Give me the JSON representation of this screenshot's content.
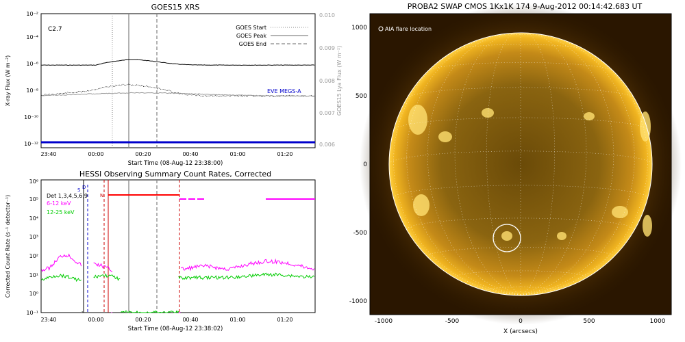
{
  "goes": {
    "title": "GOES15 XRS",
    "flare_class": "C2.7",
    "ylabel_left": "X-ray Flux (W m⁻²)",
    "ylabel_right": "GOES15 Lya Flux (W m⁻²)",
    "xlabel": "Start Time (08-Aug-12 23:38:00)",
    "x_ticks": [
      "23:40",
      "00:00",
      "00:20",
      "00:40",
      "01:00",
      "01:20"
    ],
    "y_ticks_left": [
      "10⁻¹²",
      "10⁻¹⁰",
      "10⁻⁸",
      "10⁻⁶",
      "10⁻⁴",
      "10⁻²"
    ],
    "y_ticks_right": [
      "0.006",
      "0.007",
      "0.008",
      "0.009",
      "0.010"
    ],
    "legend": [
      {
        "label": "GOES Start",
        "style": "dotted"
      },
      {
        "label": "GOES Peak",
        "style": "solid"
      },
      {
        "label": "GOES End",
        "style": "dashed"
      }
    ],
    "eve_label": "EVE MEGS-A",
    "colors": {
      "eve": "#0000cc",
      "lya": "#999999",
      "xray": "#000000"
    }
  },
  "hessi": {
    "title": "HESSI Observing Summary Count Rates, Corrected",
    "ylabel": "Corrected Count Rate (s⁻¹ detector⁻¹)",
    "xlabel": "Start Time (08-Aug-12 23:38:02)",
    "x_ticks": [
      "23:40",
      "00:00",
      "00:20",
      "00:40",
      "01:00",
      "01:20"
    ],
    "y_ticks": [
      "10⁻¹",
      "10⁰",
      "10¹",
      "10²",
      "10³",
      "10⁴",
      "10⁵",
      "10⁶"
    ],
    "legend": [
      {
        "label": "Det 1,3,4,5,6,9",
        "color": "#000000"
      },
      {
        "label": "6-12 keV",
        "color": "#ff00ff"
      },
      {
        "label": "12-25 keV",
        "color": "#00cc00"
      }
    ],
    "markers": [
      "S",
      "D",
      "N"
    ],
    "colors": {
      "low": "#ff00ff",
      "high": "#00cc00",
      "flag": "#ff0000"
    }
  },
  "swap": {
    "title": "PROBA2 SWAP CMOS 1Kx1K 174   9-Aug-2012 00:14:42.683 UT",
    "flare_label": "AIA flare location",
    "xlabel": "X (arcsecs)",
    "x_ticks": [
      "-1000",
      "-500",
      "0",
      "500",
      "1000"
    ],
    "y_ticks": [
      "1000",
      "500",
      "0",
      "-500",
      "-1000"
    ]
  },
  "chart_data": [
    {
      "type": "line",
      "title": "GOES15 XRS",
      "xlabel": "Start Time (08-Aug-12 23:38:00)",
      "ylabel": "X-ray Flux (W m⁻²)",
      "y_scale": "log",
      "ylim": [
        1e-12,
        0.01
      ],
      "x": [
        "23:40",
        "00:00",
        "00:13",
        "00:20",
        "00:40",
        "01:00",
        "01:20"
      ],
      "series": [
        {
          "name": "",
          "values": [
            1e-06,
            1e-06,
            2.7e-06,
            2e-06,
            1.3e-06,
            1.1e-06,
            1e-06
          ]
        },
        {
          "name": "",
          "values": [
            3e-09,
            5e-09,
            3e-08,
            2e-08,
            8e-09,
            4e-09,
            4e-09
          ]
        }
      ],
      "secondary_ylim": [
        0.006,
        0.01
      ],
      "markers": {
        "start": "00:08",
        "peak": "00:14",
        "end": "00:25"
      }
    },
    {
      "type": "line",
      "title": "HESSI Observing Summary Count Rates, Corrected",
      "xlabel": "Start Time (08-Aug-12 23:38:02)",
      "ylabel": "Corrected Count Rate (s⁻¹ detector⁻¹)",
      "y_scale": "log",
      "ylim": [
        0.1,
        1000000.0
      ],
      "series": [
        {
          "name": "6-12 keV",
          "values": [
            20,
            100,
            25,
            20,
            30,
            30,
            25
          ]
        },
        {
          "name": "12-25 keV",
          "values": [
            8,
            8,
            8,
            7,
            7,
            8,
            8
          ]
        }
      ],
      "x": [
        "23:40",
        "23:50",
        "00:00",
        "00:35",
        "00:50",
        "01:10",
        "01:25"
      ]
    }
  ]
}
